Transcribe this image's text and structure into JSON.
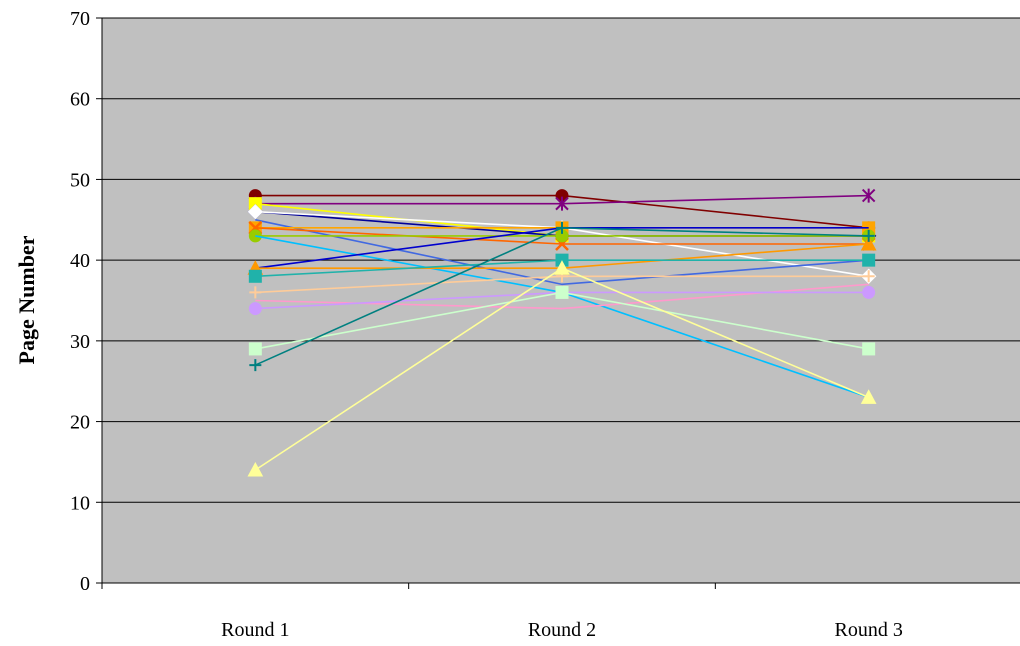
{
  "chart_data": {
    "type": "line",
    "title": "",
    "xlabel": "",
    "ylabel": "Page Number",
    "ylim": [
      0,
      70
    ],
    "yticks": [
      0,
      10,
      20,
      30,
      40,
      50,
      60,
      70
    ],
    "grid": "horizontal major gridlines",
    "legend": "none",
    "plot_background": "#c0c0c0",
    "categories": [
      "Round 1",
      "Round 2",
      "Round 3"
    ],
    "series": [
      {
        "color": "#800000",
        "marker": "circle",
        "values": [
          48,
          48,
          44
        ]
      },
      {
        "color": "#800080",
        "marker": "star",
        "values": [
          47,
          47,
          48
        ]
      },
      {
        "color": "#ffff00",
        "marker": "square",
        "values": [
          47,
          43,
          43
        ]
      },
      {
        "color": "#000099",
        "marker": "diamond",
        "values": [
          46,
          43,
          43
        ]
      },
      {
        "color": "#ffffff",
        "marker": "diamond",
        "values": [
          46,
          44,
          38
        ]
      },
      {
        "color": "#4169e1",
        "marker": "none",
        "values": [
          45,
          37,
          40
        ]
      },
      {
        "color": "#ffa500",
        "marker": "square",
        "values": [
          44,
          44,
          44
        ]
      },
      {
        "color": "#ff6600",
        "marker": "x",
        "values": [
          44,
          42,
          42
        ]
      },
      {
        "color": "#99cc00",
        "marker": "circle",
        "values": [
          43,
          43,
          43
        ]
      },
      {
        "color": "#00bfff",
        "marker": "none",
        "values": [
          43,
          36,
          23
        ]
      },
      {
        "color": "#0000cd",
        "marker": "none",
        "values": [
          39,
          44,
          44
        ]
      },
      {
        "color": "#ff9900",
        "marker": "triangle",
        "values": [
          39,
          39,
          42
        ]
      },
      {
        "color": "#20b2aa",
        "marker": "square",
        "values": [
          38,
          40,
          40
        ]
      },
      {
        "color": "#ffcc99",
        "marker": "plus",
        "values": [
          36,
          38,
          38
        ]
      },
      {
        "color": "#ff99cc",
        "marker": "none",
        "values": [
          35,
          34,
          37
        ]
      },
      {
        "color": "#cc99ff",
        "marker": "circle",
        "values": [
          34,
          36,
          36
        ]
      },
      {
        "color": "#ccffcc",
        "marker": "square",
        "values": [
          29,
          36,
          29
        ]
      },
      {
        "color": "#008080",
        "marker": "plus",
        "values": [
          27,
          44,
          43
        ]
      },
      {
        "color": "#ffff99",
        "marker": "triangle",
        "values": [
          14,
          39,
          23
        ]
      }
    ]
  }
}
